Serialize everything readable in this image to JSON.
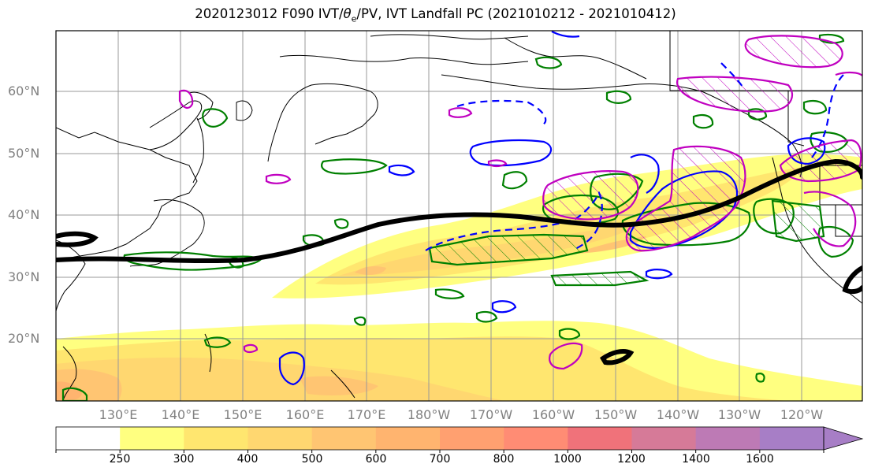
{
  "title_prefix": "2020123012 F090 IVT/",
  "title_theta": "θ",
  "title_sub": "e",
  "title_suffix": "/PV, IVT Landfall PC (2021010212 - 2021010412)",
  "lat_labels": [
    "60°N",
    "50°N",
    "40°N",
    "30°N",
    "20°N"
  ],
  "lon_labels": [
    "130°E",
    "140°E",
    "150°E",
    "160°E",
    "170°E",
    "180°W",
    "170°W",
    "160°W",
    "150°W",
    "140°W",
    "130°W",
    "120°W"
  ],
  "colorbar": {
    "levels": [
      "250",
      "300",
      "400",
      "500",
      "600",
      "700",
      "800",
      "1000",
      "1200",
      "1400",
      "1600"
    ],
    "colors": [
      "#ffffff",
      "#ffff80",
      "#ffe66f",
      "#ffd770",
      "#ffc572",
      "#ffb46f",
      "#ffa070",
      "#ff8c74",
      "#f0727a",
      "#d67a98",
      "#bd7ab5",
      "#a77ec6"
    ]
  },
  "colors": {
    "jet": "#000000",
    "pv_green": "#008000",
    "theta_blue": "#0000ff",
    "landfall_magenta": "#c000c0",
    "ivt_light": "#ffff80",
    "ivt_mid": "#ffe66f",
    "ivt_dark": "#ffc572"
  }
}
